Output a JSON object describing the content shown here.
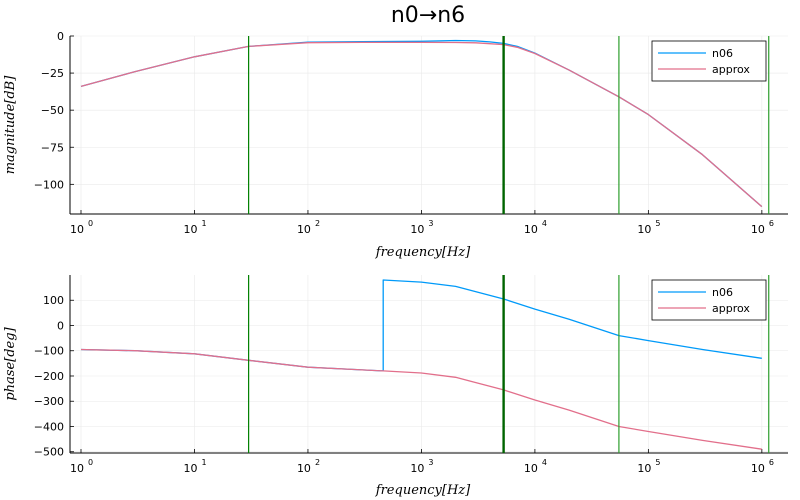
{
  "figure_title": "n0→n6",
  "chart_data": [
    {
      "type": "line",
      "xscale": "log",
      "xlim": [
        0.8,
        1700000
      ],
      "ylim": [
        -120,
        0
      ],
      "xlabel": "frequency[Hz]",
      "ylabel": "magnitude[dB]",
      "x_ticks": [
        {
          "value": 1,
          "base": "10",
          "exp": "0"
        },
        {
          "value": 10,
          "base": "10",
          "exp": "1"
        },
        {
          "value": 100,
          "base": "10",
          "exp": "2"
        },
        {
          "value": 1000,
          "base": "10",
          "exp": "3"
        },
        {
          "value": 10000,
          "base": "10",
          "exp": "4"
        },
        {
          "value": 100000,
          "base": "10",
          "exp": "5"
        },
        {
          "value": 1000000,
          "base": "10",
          "exp": "6"
        }
      ],
      "y_ticks": [
        {
          "value": 0,
          "label": "0"
        },
        {
          "value": -25,
          "label": "−25"
        },
        {
          "value": -50,
          "label": "−50"
        },
        {
          "value": -75,
          "label": "−75"
        },
        {
          "value": -100,
          "label": "−100"
        }
      ],
      "grid": true,
      "legend_position": "top-right",
      "vlines": [
        {
          "x": 30,
          "color": "#008000",
          "width": 1.2
        },
        {
          "x": 5300,
          "color": "#006400",
          "width": 2.4
        },
        {
          "x": 55000,
          "color": "#2e9e2e",
          "width": 1.2
        },
        {
          "x": 1150000,
          "color": "#2e9e2e",
          "width": 1.2
        }
      ],
      "series": [
        {
          "name": "n06",
          "color": "#009AF9",
          "x": [
            1,
            3,
            10,
            30,
            100,
            300,
            1000,
            2000,
            3000,
            4000,
            5300,
            7000,
            10000,
            20000,
            55000,
            100000,
            300000,
            1000000
          ],
          "y": [
            -34,
            -24,
            -14,
            -7,
            -4.2,
            -3.8,
            -3.6,
            -3.0,
            -3.3,
            -4.0,
            -5.0,
            -7,
            -11.5,
            -23,
            -41,
            -53,
            -80,
            -115
          ]
        },
        {
          "name": "approx",
          "color": "#E26F8B",
          "x": [
            1,
            3,
            10,
            30,
            100,
            300,
            1000,
            2000,
            3000,
            4000,
            5300,
            7000,
            10000,
            20000,
            55000,
            100000,
            300000,
            1000000
          ],
          "y": [
            -34,
            -24,
            -14,
            -7,
            -4.5,
            -4.3,
            -4.3,
            -4.4,
            -4.6,
            -5.2,
            -5.8,
            -7.6,
            -11.8,
            -23,
            -41,
            -53,
            -80,
            -115
          ]
        }
      ]
    },
    {
      "type": "line",
      "xscale": "log",
      "xlim": [
        0.8,
        1700000
      ],
      "ylim": [
        -505,
        200
      ],
      "xlabel": "frequency[Hz]",
      "ylabel": "phase[deg]",
      "x_ticks": [
        {
          "value": 1,
          "base": "10",
          "exp": "0"
        },
        {
          "value": 10,
          "base": "10",
          "exp": "1"
        },
        {
          "value": 100,
          "base": "10",
          "exp": "2"
        },
        {
          "value": 1000,
          "base": "10",
          "exp": "3"
        },
        {
          "value": 10000,
          "base": "10",
          "exp": "4"
        },
        {
          "value": 100000,
          "base": "10",
          "exp": "5"
        },
        {
          "value": 1000000,
          "base": "10",
          "exp": "6"
        }
      ],
      "y_ticks": [
        {
          "value": 100,
          "label": "100"
        },
        {
          "value": 0,
          "label": "0"
        },
        {
          "value": -100,
          "label": "−100"
        },
        {
          "value": -200,
          "label": "−200"
        },
        {
          "value": -300,
          "label": "−300"
        },
        {
          "value": -400,
          "label": "−400"
        },
        {
          "value": -500,
          "label": "−500"
        }
      ],
      "grid": true,
      "legend_position": "top-right",
      "vlines": [
        {
          "x": 30,
          "color": "#008000",
          "width": 1.2
        },
        {
          "x": 5300,
          "color": "#006400",
          "width": 2.4
        },
        {
          "x": 55000,
          "color": "#2e9e2e",
          "width": 1.2
        },
        {
          "x": 1150000,
          "color": "#2e9e2e",
          "width": 1.2
        }
      ],
      "series": [
        {
          "name": "n06",
          "color": "#009AF9",
          "x": [
            1,
            3,
            10,
            30,
            100,
            300,
            460,
            460,
            1000,
            2000,
            5300,
            10000,
            20000,
            55000,
            100000,
            300000,
            1000000
          ],
          "y": [
            -95,
            -100,
            -112,
            -138,
            -165,
            -176,
            -180,
            180,
            172,
            155,
            105,
            65,
            25,
            -40,
            -60,
            -95,
            -130
          ]
        },
        {
          "name": "approx",
          "color": "#E26F8B",
          "x": [
            1,
            3,
            10,
            30,
            100,
            300,
            460,
            1000,
            2000,
            5300,
            10000,
            20000,
            55000,
            100000,
            300000,
            1000000
          ],
          "y": [
            -95,
            -100,
            -112,
            -138,
            -165,
            -176,
            -180,
            -188,
            -205,
            -255,
            -295,
            -335,
            -400,
            -420,
            -455,
            -490
          ]
        }
      ]
    }
  ]
}
